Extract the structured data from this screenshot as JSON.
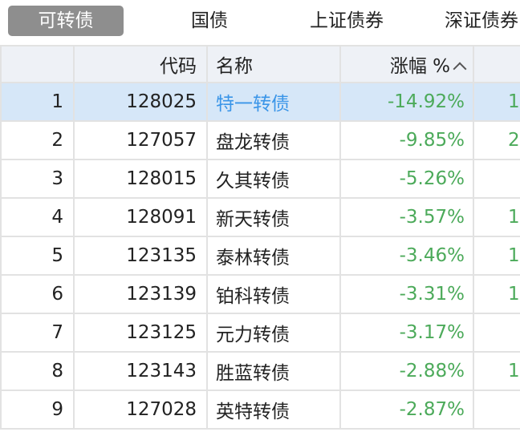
{
  "tabs": [
    {
      "label": "可转债",
      "active": true
    },
    {
      "label": "国债"
    },
    {
      "label": "上证债券"
    },
    {
      "label": "深证债券"
    }
  ],
  "table": {
    "headers": [
      "",
      "代码",
      "名称",
      "涨幅 %",
      ""
    ],
    "sort": "ascending",
    "rows": [
      {
        "rank": "1",
        "code": "128025",
        "name": "特一转债",
        "change": "-14.92%",
        "next": "1",
        "selected": true
      },
      {
        "rank": "2",
        "code": "127057",
        "name": "盘龙转债",
        "change": "-9.85%",
        "next": "2"
      },
      {
        "rank": "3",
        "code": "128015",
        "name": "久其转债",
        "change": "-5.26%",
        "next": ""
      },
      {
        "rank": "4",
        "code": "128091",
        "name": "新天转债",
        "change": "-3.57%",
        "next": "1"
      },
      {
        "rank": "5",
        "code": "123135",
        "name": "泰林转债",
        "change": "-3.46%",
        "next": "1"
      },
      {
        "rank": "6",
        "code": "123139",
        "name": "铂科转债",
        "change": "-3.31%",
        "next": "1"
      },
      {
        "rank": "7",
        "code": "123125",
        "name": "元力转债",
        "change": "-3.17%",
        "next": ""
      },
      {
        "rank": "8",
        "code": "123143",
        "name": "胜蓝转债",
        "change": "-2.88%",
        "next": "1"
      },
      {
        "rank": "9",
        "code": "127028",
        "name": "英特转债",
        "change": "-2.87%",
        "next": ""
      }
    ]
  },
  "colors": {
    "negative": "#4caa5a",
    "selected_row": "#d6e7f8",
    "selected_name": "#3a95e8",
    "active_tab": "#8e8e8e"
  }
}
